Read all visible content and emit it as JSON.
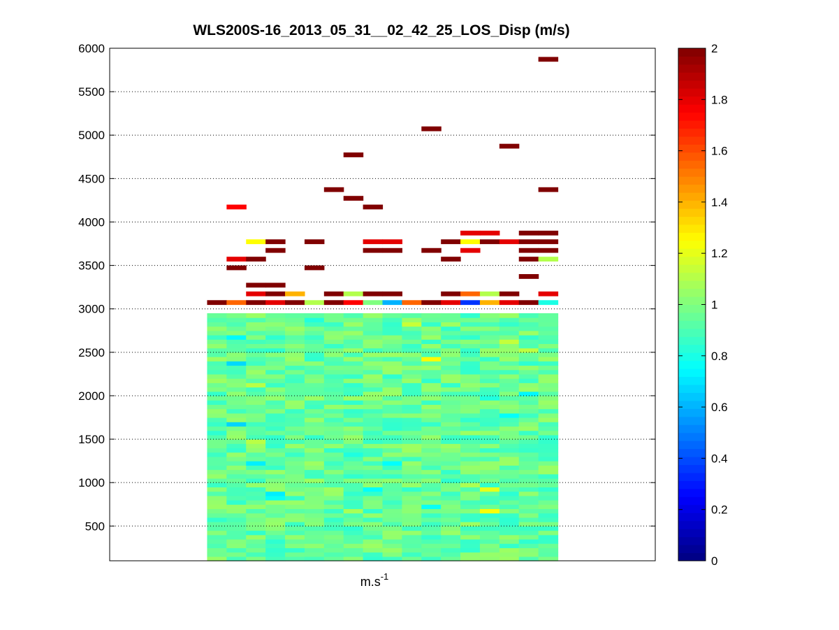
{
  "chart_data": {
    "type": "heatmap",
    "title": "WLS200S-16_2013_05_31__02_42_25_LOS_Disp (m/s)",
    "xlabel": {
      "base": "m.s",
      "sup": "-1"
    },
    "ylabel": "",
    "ylim": [
      100,
      6000
    ],
    "yticks": [
      500,
      1000,
      1500,
      2000,
      2500,
      3000,
      3500,
      4000,
      4500,
      5000,
      5500,
      6000
    ],
    "grid": "y-dotted",
    "n_columns": 18,
    "column_range": [
      5,
      22
    ],
    "xlim": [
      0,
      28
    ],
    "row_height_m": 50,
    "low_block_top": 2950,
    "colorbar": {
      "colormap": "jet",
      "clim": [
        0,
        2
      ],
      "ticks": [
        "0",
        "0.2",
        "0.4",
        "0.6",
        "0.8",
        "1",
        "1.2",
        "1.4",
        "1.6",
        "1.8",
        "2"
      ]
    },
    "cells": [
      {
        "col": 0,
        "alt": 3050,
        "value": 2.0
      },
      {
        "col": 1,
        "alt": 3050,
        "value": 1.55
      },
      {
        "col": 1,
        "alt": 3550,
        "value": 1.8
      },
      {
        "col": 1,
        "alt": 3450,
        "value": 2.0
      },
      {
        "col": 1,
        "alt": 4150,
        "value": 1.75
      },
      {
        "col": 2,
        "alt": 3050,
        "value": 2.0
      },
      {
        "col": 2,
        "alt": 3150,
        "value": 1.8
      },
      {
        "col": 2,
        "alt": 3250,
        "value": 2.0
      },
      {
        "col": 2,
        "alt": 3550,
        "value": 2.0
      },
      {
        "col": 2,
        "alt": 3750,
        "value": 1.25
      },
      {
        "col": 3,
        "alt": 3050,
        "value": 1.8
      },
      {
        "col": 3,
        "alt": 3150,
        "value": 2.0
      },
      {
        "col": 3,
        "alt": 3250,
        "value": 2.0
      },
      {
        "col": 3,
        "alt": 3650,
        "value": 2.0
      },
      {
        "col": 3,
        "alt": 3750,
        "value": 2.0
      },
      {
        "col": 4,
        "alt": 3050,
        "value": 2.0
      },
      {
        "col": 4,
        "alt": 3150,
        "value": 1.4
      },
      {
        "col": 5,
        "alt": 3050,
        "value": 1.1
      },
      {
        "col": 5,
        "alt": 3450,
        "value": 2.0
      },
      {
        "col": 5,
        "alt": 3750,
        "value": 2.0
      },
      {
        "col": 6,
        "alt": 3050,
        "value": 2.0
      },
      {
        "col": 6,
        "alt": 3150,
        "value": 2.0
      },
      {
        "col": 6,
        "alt": 4350,
        "value": 2.0
      },
      {
        "col": 7,
        "alt": 3050,
        "value": 1.75
      },
      {
        "col": 7,
        "alt": 3150,
        "value": 1.1
      },
      {
        "col": 7,
        "alt": 4250,
        "value": 2.0
      },
      {
        "col": 7,
        "alt": 4750,
        "value": 2.0
      },
      {
        "col": 8,
        "alt": 3050,
        "value": 1.0
      },
      {
        "col": 8,
        "alt": 3150,
        "value": 2.0
      },
      {
        "col": 8,
        "alt": 3650,
        "value": 2.0
      },
      {
        "col": 8,
        "alt": 3750,
        "value": 1.8
      },
      {
        "col": 8,
        "alt": 4150,
        "value": 2.0
      },
      {
        "col": 9,
        "alt": 3050,
        "value": 0.6
      },
      {
        "col": 9,
        "alt": 3150,
        "value": 2.0
      },
      {
        "col": 9,
        "alt": 3650,
        "value": 2.0
      },
      {
        "col": 9,
        "alt": 3750,
        "value": 1.8
      },
      {
        "col": 10,
        "alt": 3050,
        "value": 1.55
      },
      {
        "col": 11,
        "alt": 3050,
        "value": 2.0
      },
      {
        "col": 11,
        "alt": 3650,
        "value": 2.0
      },
      {
        "col": 11,
        "alt": 5050,
        "value": 2.0
      },
      {
        "col": 12,
        "alt": 3050,
        "value": 1.8
      },
      {
        "col": 12,
        "alt": 3150,
        "value": 2.0
      },
      {
        "col": 12,
        "alt": 3550,
        "value": 2.0
      },
      {
        "col": 12,
        "alt": 3750,
        "value": 2.0
      },
      {
        "col": 13,
        "alt": 3050,
        "value": 0.35
      },
      {
        "col": 13,
        "alt": 3150,
        "value": 1.55
      },
      {
        "col": 13,
        "alt": 3650,
        "value": 1.8
      },
      {
        "col": 13,
        "alt": 3750,
        "value": 1.25
      },
      {
        "col": 13,
        "alt": 3850,
        "value": 1.8
      },
      {
        "col": 14,
        "alt": 3050,
        "value": 1.4
      },
      {
        "col": 14,
        "alt": 3150,
        "value": 1.1
      },
      {
        "col": 14,
        "alt": 3750,
        "value": 2.0
      },
      {
        "col": 14,
        "alt": 3850,
        "value": 1.8
      },
      {
        "col": 15,
        "alt": 3050,
        "value": 1.8
      },
      {
        "col": 15,
        "alt": 3150,
        "value": 2.0
      },
      {
        "col": 15,
        "alt": 3750,
        "value": 1.8
      },
      {
        "col": 15,
        "alt": 4850,
        "value": 2.0
      },
      {
        "col": 16,
        "alt": 3050,
        "value": 2.0
      },
      {
        "col": 16,
        "alt": 3350,
        "value": 2.0
      },
      {
        "col": 16,
        "alt": 3550,
        "value": 2.0
      },
      {
        "col": 16,
        "alt": 3650,
        "value": 2.0
      },
      {
        "col": 16,
        "alt": 3750,
        "value": 2.0
      },
      {
        "col": 16,
        "alt": 3850,
        "value": 2.0
      },
      {
        "col": 17,
        "alt": 3050,
        "value": 0.8
      },
      {
        "col": 17,
        "alt": 3150,
        "value": 1.8
      },
      {
        "col": 17,
        "alt": 3550,
        "value": 1.1
      },
      {
        "col": 17,
        "alt": 3650,
        "value": 2.0
      },
      {
        "col": 17,
        "alt": 3750,
        "value": 2.0
      },
      {
        "col": 17,
        "alt": 3850,
        "value": 2.0
      },
      {
        "col": 17,
        "alt": 4350,
        "value": 2.0
      },
      {
        "col": 17,
        "alt": 5850,
        "value": 2.0
      }
    ]
  }
}
